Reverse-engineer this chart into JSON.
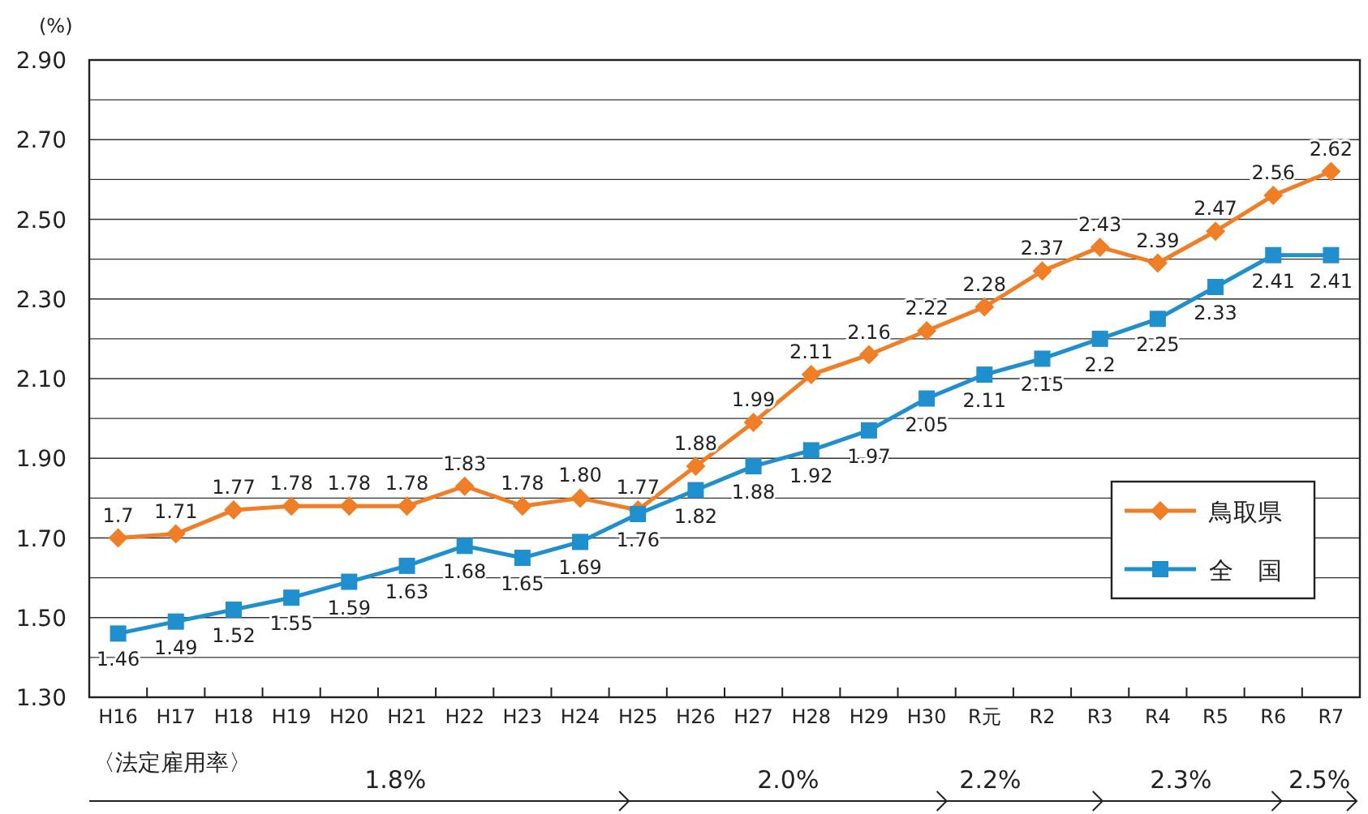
{
  "chart_data": {
    "type": "line",
    "ylabel": "(%)",
    "categories": [
      "H16",
      "H17",
      "H18",
      "H19",
      "H20",
      "H21",
      "H22",
      "H23",
      "H24",
      "H25",
      "H26",
      "H27",
      "H28",
      "H29",
      "H30",
      "R元",
      "R2",
      "R3",
      "R4",
      "R5",
      "R6",
      "R7"
    ],
    "series": [
      {
        "name": "鳥取県",
        "color": "#f07e26",
        "marker": "diamond",
        "values": [
          1.7,
          1.71,
          1.77,
          1.78,
          1.78,
          1.78,
          1.83,
          1.78,
          1.8,
          1.77,
          1.88,
          1.99,
          2.11,
          2.16,
          2.22,
          2.28,
          2.37,
          2.43,
          2.39,
          2.47,
          2.56,
          2.62
        ],
        "value_labels": [
          "1.7",
          "1.71",
          "1.77",
          "1.78",
          "1.78",
          "1.78",
          "1.83",
          "1.78",
          "1.80",
          "1.77",
          "1.88",
          "1.99",
          "2.11",
          "2.16",
          "2.22",
          "2.28",
          "2.37",
          "2.43",
          "2.39",
          "2.47",
          "2.56",
          "2.62"
        ]
      },
      {
        "name": "全　国",
        "color": "#1f8fce",
        "marker": "square",
        "values": [
          1.46,
          1.49,
          1.52,
          1.55,
          1.59,
          1.63,
          1.68,
          1.65,
          1.69,
          1.76,
          1.82,
          1.88,
          1.92,
          1.97,
          2.05,
          2.11,
          2.15,
          2.2,
          2.25,
          2.33,
          2.41,
          2.41
        ],
        "value_labels": [
          "1.46",
          "1.49",
          "1.52",
          "1.55",
          "1.59",
          "1.63",
          "1.68",
          "1.65",
          "1.69",
          "1.76",
          "1.82",
          "1.88",
          "1.92",
          "1.97",
          "2.05",
          "2.11",
          "2.15",
          "2.2",
          "2.25",
          "2.33",
          "2.41",
          "2.41"
        ]
      }
    ],
    "ylim": [
      1.3,
      2.9
    ],
    "yticks": [
      {
        "value": 1.3,
        "label": "1.30"
      },
      {
        "value": 1.4,
        "label": null
      },
      {
        "value": 1.5,
        "label": "1.50"
      },
      {
        "value": 1.6,
        "label": null
      },
      {
        "value": 1.7,
        "label": "1.70"
      },
      {
        "value": 1.8,
        "label": null
      },
      {
        "value": 1.9,
        "label": "1.90"
      },
      {
        "value": 2.0,
        "label": null
      },
      {
        "value": 2.1,
        "label": "2.10"
      },
      {
        "value": 2.2,
        "label": null
      },
      {
        "value": 2.3,
        "label": "2.30"
      },
      {
        "value": 2.4,
        "label": null
      },
      {
        "value": 2.5,
        "label": "2.50"
      },
      {
        "value": 2.6,
        "label": null
      },
      {
        "value": 2.7,
        "label": "2.70"
      },
      {
        "value": 2.8,
        "label": null
      },
      {
        "value": 2.9,
        "label": "2.90"
      }
    ],
    "grid": "y",
    "legend": "right",
    "line_style": "solid",
    "annotations": [
      "〈法定雇用率〉",
      "1.8%",
      "2.0%",
      "2.2%",
      "2.3%",
      "2.5%"
    ]
  }
}
